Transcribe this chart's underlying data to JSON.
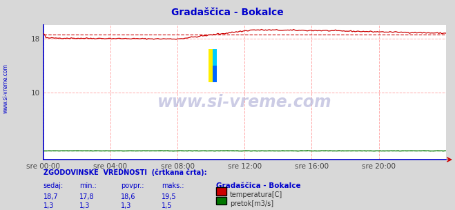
{
  "title": "Gradaščica - Bokalce",
  "title_color": "#0000cc",
  "bg_color": "#d8d8d8",
  "plot_bg_color": "#ffffff",
  "watermark_text": "www.si-vreme.com",
  "watermark_color": "#b0b0cc",
  "x_ticks": [
    0,
    48,
    96,
    144,
    192,
    240
  ],
  "x_tick_labels": [
    "sre 00:00",
    "sre 04:00",
    "sre 08:00",
    "sre 12:00",
    "sre 16:00",
    "sre 20:00"
  ],
  "y_ticks": [
    10,
    18
  ],
  "y_tick_labels": [
    "10",
    "18"
  ],
  "temp_color": "#cc0000",
  "flow_color": "#007700",
  "hist_temp_value": 18.6,
  "hist_flow_value": 1.3,
  "axis_color": "#0000cc",
  "grid_color": "#ffaaaa",
  "stats_label": "ZGODOVINSKE  VREDNOSTI  (črtkana črta):",
  "stats_headers": [
    "sedaj:",
    "min.:",
    "povpr.:",
    "maks.:"
  ],
  "stats_temp": [
    "18,7",
    "17,8",
    "18,6",
    "19,5"
  ],
  "stats_flow": [
    "1,3",
    "1,3",
    "1,3",
    "1,5"
  ],
  "legend_title": "Gradaščica - Bokalce",
  "legend_items": [
    "temperatura[C]",
    "pretok[m3/s]"
  ],
  "legend_colors": [
    "#cc0000",
    "#007700"
  ],
  "sidebar_text": "www.si-vreme.com",
  "sidebar_color": "#0000cc"
}
